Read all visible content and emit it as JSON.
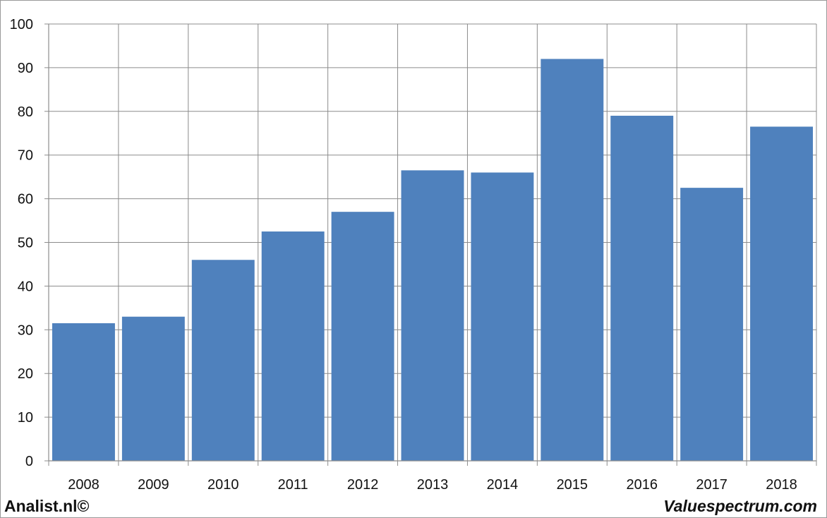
{
  "chart_data": {
    "type": "bar",
    "categories": [
      "2008",
      "2009",
      "2010",
      "2011",
      "2012",
      "2013",
      "2014",
      "2015",
      "2016",
      "2017",
      "2018"
    ],
    "values": [
      31.5,
      33,
      46,
      52.5,
      57,
      66.5,
      66,
      92,
      79,
      62.5,
      76.5
    ],
    "title": "",
    "xlabel": "",
    "ylabel": "",
    "ylim": [
      0,
      100
    ],
    "yticks": [
      0,
      10,
      20,
      30,
      40,
      50,
      60,
      70,
      80,
      90,
      100
    ],
    "grid": true,
    "bar_color": "#4f81bd",
    "grid_color": "#8c8c8c"
  },
  "footer": {
    "left": "Analist.nl©",
    "right": "Valuespectrum.com"
  }
}
